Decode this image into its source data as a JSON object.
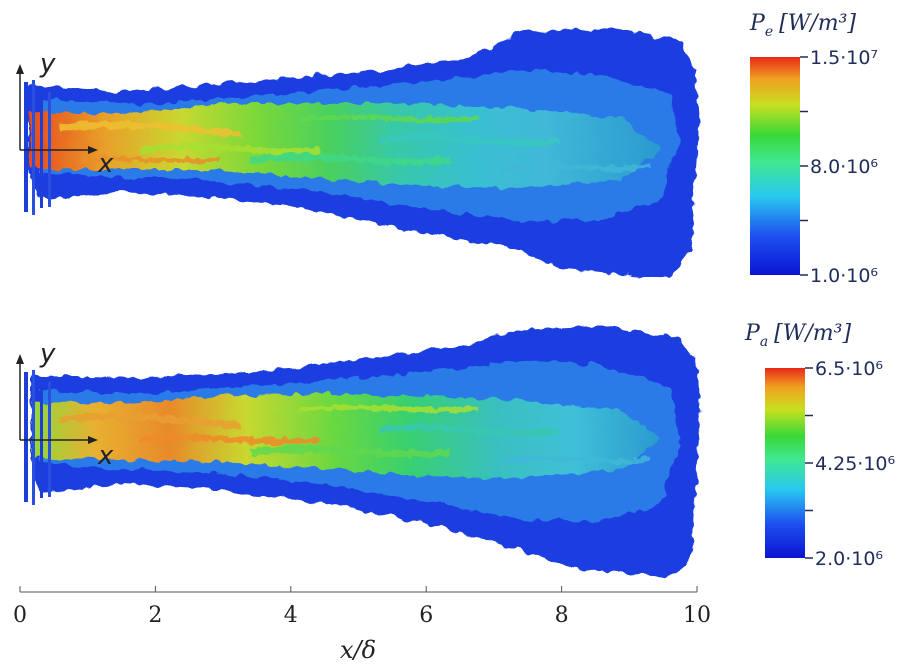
{
  "chart_data": [
    {
      "type": "heatmap",
      "panel": "top",
      "colorbar_title": "P",
      "colorbar_sub": "e",
      "colorbar_unit": "[W/m³]",
      "colorbar_ticks": [
        {
          "value": 15000000,
          "label": "1.5·10⁷"
        },
        {
          "value": 11500000,
          "label": ""
        },
        {
          "value": 8000000,
          "label": "8.0·10⁶"
        },
        {
          "value": 4500000,
          "label": ""
        },
        {
          "value": 1000000,
          "label": "1.0·10⁶"
        }
      ],
      "clim": [
        1000000,
        15000000
      ],
      "colormap": "jet",
      "axis_glyphs": {
        "x": "x",
        "y": "y"
      }
    },
    {
      "type": "heatmap",
      "panel": "bottom",
      "colorbar_title": "P",
      "colorbar_sub": "a",
      "colorbar_unit": "[W/m³]",
      "colorbar_ticks": [
        {
          "value": 6500000,
          "label": "6.5·10⁶"
        },
        {
          "value": 5375000,
          "label": ""
        },
        {
          "value": 4250000,
          "label": "4.25·10⁶"
        },
        {
          "value": 3125000,
          "label": ""
        },
        {
          "value": 2000000,
          "label": "2.0·10⁶"
        }
      ],
      "clim": [
        2000000,
        6500000
      ],
      "colormap": "jet",
      "axis_glyphs": {
        "x": "x",
        "y": "y"
      }
    }
  ],
  "x_axis": {
    "label": "x/δ",
    "ticks": [
      0,
      2,
      4,
      6,
      8,
      10
    ],
    "xlim": [
      0,
      10
    ]
  },
  "colors": {
    "text": "#1f2d5a",
    "axis": "#333333",
    "jet": [
      "#0a14d2",
      "#1e50f0",
      "#28c8f0",
      "#40e890",
      "#38d838",
      "#c8e020",
      "#f0a020",
      "#e82818"
    ]
  }
}
